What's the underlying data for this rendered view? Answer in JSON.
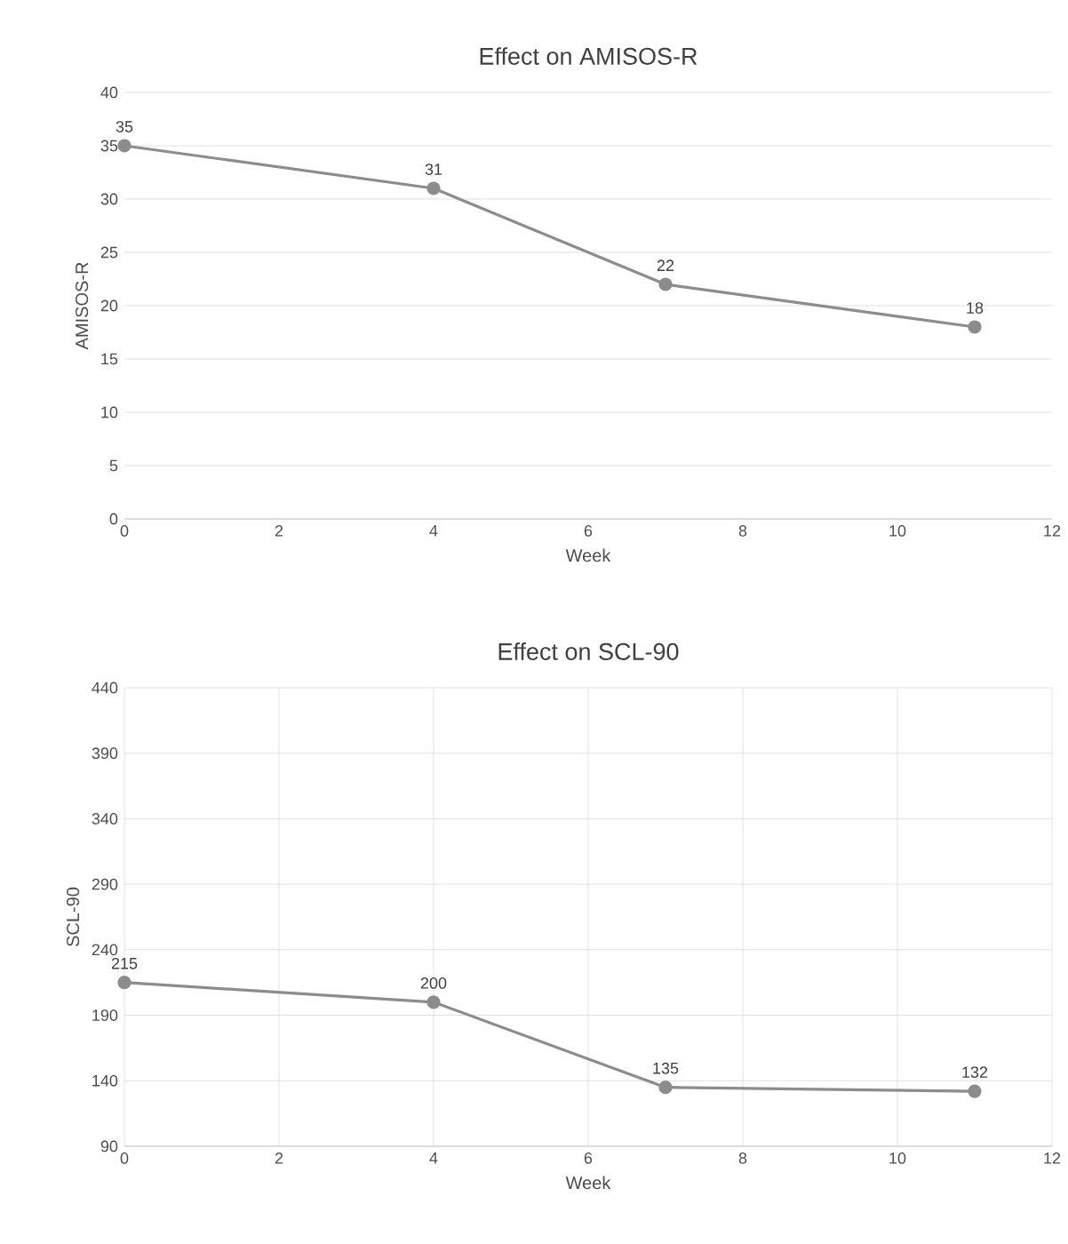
{
  "chart_data": [
    {
      "type": "line",
      "title": "Effect on AMISOS-R",
      "xlabel": "Week",
      "ylabel": "AMISOS-R",
      "x": [
        0,
        4,
        7,
        11
      ],
      "values": [
        35,
        31,
        22,
        18
      ],
      "color": "#8c8c8c",
      "marker": "circle",
      "data_labels": true,
      "grid": "y",
      "xlim": [
        0,
        12
      ],
      "xticks": [
        0,
        2,
        4,
        6,
        8,
        10,
        12
      ],
      "ylim": [
        0,
        40
      ],
      "yticks": [
        0,
        5,
        10,
        15,
        20,
        25,
        30,
        35,
        40
      ]
    },
    {
      "type": "line",
      "title": "Effect on SCL-90",
      "xlabel": "Week",
      "ylabel": "SCL-90",
      "x": [
        0,
        4,
        7,
        11
      ],
      "values": [
        215,
        200,
        135,
        132
      ],
      "color": "#8c8c8c",
      "marker": "circle",
      "data_labels": true,
      "grid": true,
      "xlim": [
        0,
        12
      ],
      "xticks": [
        0,
        2,
        4,
        6,
        8,
        10,
        12
      ],
      "ylim": [
        90,
        440
      ],
      "yticks": [
        90,
        140,
        190,
        240,
        290,
        340,
        390,
        440
      ]
    }
  ]
}
